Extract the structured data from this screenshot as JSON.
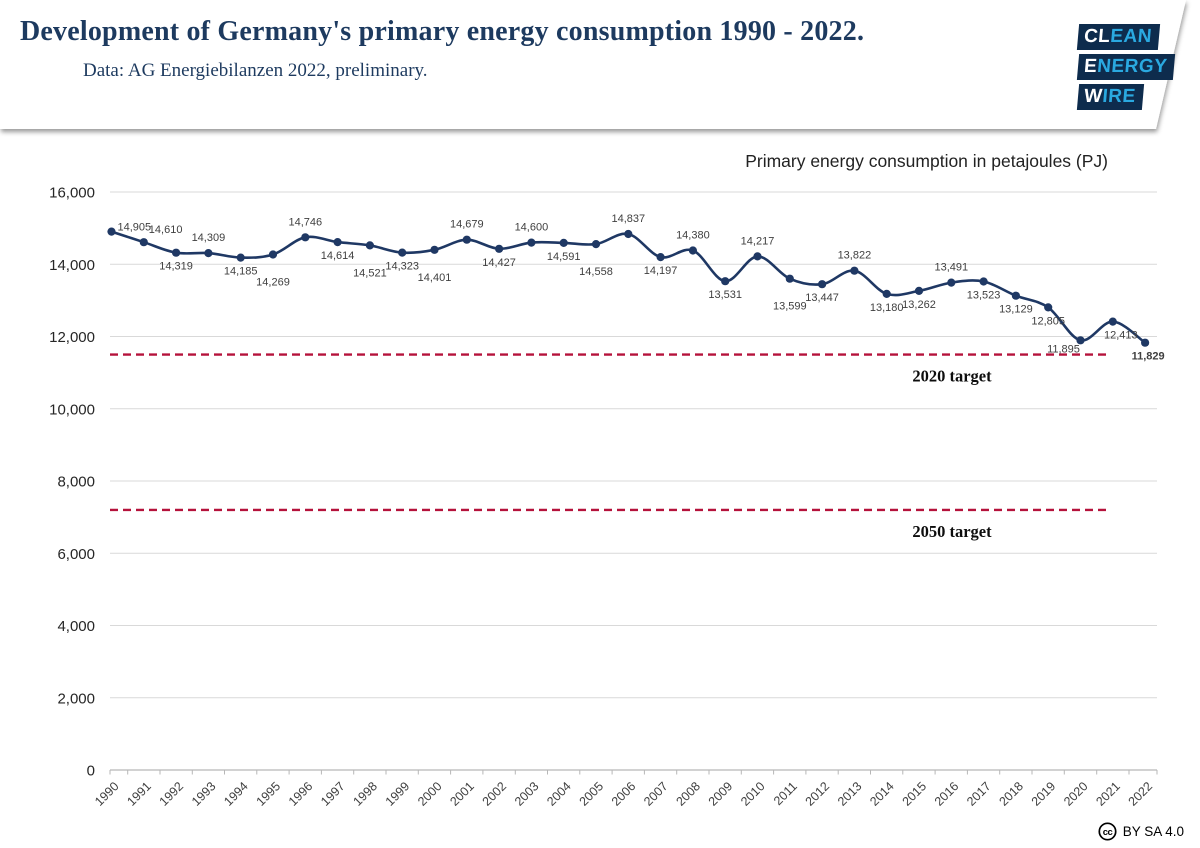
{
  "header": {
    "title": "Development of Germany's primary energy consumption 1990 - 2022.",
    "subtitle": "Data: AG Energiebilanzen 2022, preliminary.",
    "logo": {
      "clean_white": "CL",
      "clean_accent": "EAN",
      "energy_white": "E",
      "energy_accent": "NERGY",
      "wire_white": "W",
      "wire_accent": "IRE"
    }
  },
  "chart_data": {
    "type": "line",
    "title": "Primary energy consumption in petajoules (PJ)",
    "xlabel": "",
    "ylabel": "",
    "ylim": [
      0,
      16000
    ],
    "ytick_step": 2000,
    "grid": true,
    "legend_position": "none",
    "years": [
      1990,
      1991,
      1992,
      1993,
      1994,
      1995,
      1996,
      1997,
      1998,
      1999,
      2000,
      2001,
      2002,
      2003,
      2004,
      2005,
      2006,
      2007,
      2008,
      2009,
      2010,
      2011,
      2012,
      2013,
      2014,
      2015,
      2016,
      2017,
      2018,
      2019,
      2020,
      2021,
      2022
    ],
    "values": [
      14905,
      14610,
      14319,
      14309,
      14185,
      14269,
      14746,
      14614,
      14521,
      14323,
      14401,
      14679,
      14427,
      14600,
      14591,
      14558,
      14837,
      14197,
      14380,
      13531,
      14217,
      13599,
      13447,
      13822,
      13180,
      13262,
      13491,
      13523,
      13129,
      12805,
      11895,
      12413,
      11829
    ],
    "label_pos": [
      "s",
      "a2",
      "b",
      "a",
      "b",
      "bb",
      "a",
      "b",
      "bb",
      "b",
      "bb",
      "a",
      "b",
      "a",
      "b",
      "bb",
      "a",
      "b",
      "a",
      "b",
      "a",
      "bb",
      "b",
      "a",
      "b",
      "b",
      "a",
      "b",
      "b",
      "b",
      "bl2",
      "br",
      "B"
    ],
    "targets": [
      {
        "label": "2020 target",
        "value": 11500
      },
      {
        "label": "2050 target",
        "value": 7200
      }
    ],
    "colors": {
      "line": "#1f3864",
      "target": "#b5123b",
      "grid": "#d9d9d9",
      "axis": "#b7b7b7",
      "data_label": "#404040",
      "tick_label": "#262626",
      "x_label": "#404040"
    }
  },
  "footer": {
    "license": "BY SA 4.0",
    "cc_glyph": "cc"
  }
}
